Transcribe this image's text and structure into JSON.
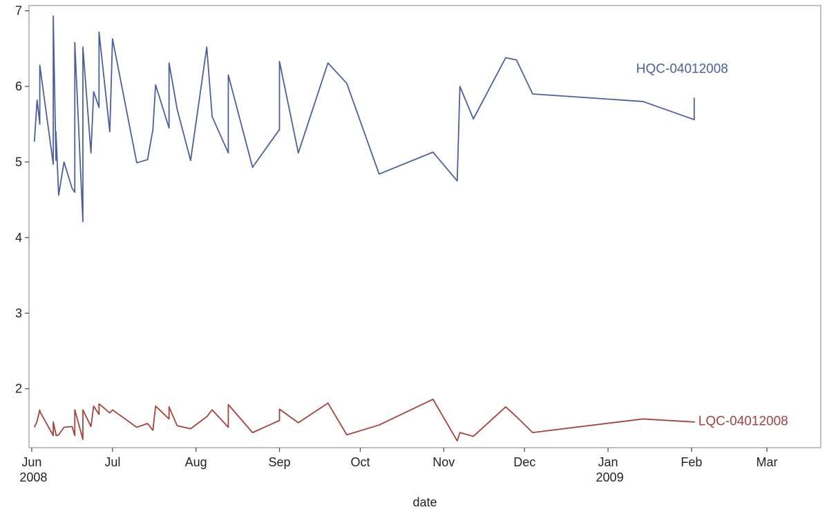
{
  "chart_data": {
    "type": "line",
    "x_label": "date",
    "x": [
      "2008-06-02",
      "2008-06-03",
      "2008-06-04",
      "2008-06-04",
      "2008-06-09",
      "2008-06-09",
      "2008-06-10",
      "2008-06-10",
      "2008-06-11",
      "2008-06-13",
      "2008-06-16",
      "2008-06-17",
      "2008-06-17",
      "2008-06-20",
      "2008-06-20",
      "2008-06-23",
      "2008-06-24",
      "2008-06-26",
      "2008-06-26",
      "2008-06-30",
      "2008-07-01",
      "2008-07-10",
      "2008-07-14",
      "2008-07-16",
      "2008-07-17",
      "2008-07-22",
      "2008-07-22",
      "2008-07-25",
      "2008-07-30",
      "2008-08-05",
      "2008-08-07",
      "2008-08-13",
      "2008-08-13",
      "2008-08-22",
      "2008-09-01",
      "2008-09-01",
      "2008-09-08",
      "2008-09-19",
      "2008-09-26",
      "2008-10-08",
      "2008-10-28",
      "2008-11-06",
      "2008-11-07",
      "2008-11-12",
      "2008-11-24",
      "2008-11-28",
      "2008-12-04",
      "2009-01-14",
      "2009-02-02",
      "2009-02-02"
    ],
    "series": [
      {
        "name": "HQC-04012008",
        "color": "#4c5f9b",
        "values": [
          5.27,
          5.82,
          5.5,
          6.28,
          4.97,
          6.93,
          5.02,
          5.4,
          4.56,
          5.0,
          4.65,
          4.6,
          6.58,
          4.21,
          6.52,
          5.12,
          5.93,
          5.72,
          6.72,
          5.4,
          6.63,
          4.99,
          5.03,
          5.43,
          6.02,
          5.45,
          6.31,
          5.7,
          5.02,
          6.52,
          5.6,
          5.12,
          6.15,
          4.93,
          5.43,
          6.33,
          5.12,
          6.31,
          6.04,
          4.84,
          5.13,
          4.75,
          6.0,
          5.57,
          6.38,
          6.35,
          5.9,
          5.8,
          5.56,
          5.85
        ]
      },
      {
        "name": "LQC-04012008",
        "color": "#a6413b",
        "values": [
          1.49,
          1.57,
          1.72,
          1.7,
          1.38,
          1.56,
          1.4,
          1.38,
          1.39,
          1.49,
          1.5,
          1.38,
          1.72,
          1.33,
          1.72,
          1.5,
          1.77,
          1.66,
          1.8,
          1.68,
          1.72,
          1.49,
          1.54,
          1.45,
          1.77,
          1.6,
          1.76,
          1.51,
          1.47,
          1.63,
          1.72,
          1.49,
          1.79,
          1.42,
          1.58,
          1.73,
          1.55,
          1.81,
          1.39,
          1.52,
          1.86,
          1.31,
          1.42,
          1.37,
          1.76,
          1.63,
          1.42,
          1.6,
          1.56,
          1.57
        ]
      }
    ],
    "xlim": [
      "2008-05-31",
      "2009-03-21"
    ],
    "xticks": [
      {
        "value": "2008-06-01",
        "label": "Jun 2008"
      },
      {
        "value": "2008-07-01",
        "label": "Jul"
      },
      {
        "value": "2008-08-01",
        "label": "Aug"
      },
      {
        "value": "2008-09-01",
        "label": "Sep"
      },
      {
        "value": "2008-10-01",
        "label": "Oct"
      },
      {
        "value": "2008-11-01",
        "label": "Nov"
      },
      {
        "value": "2008-12-01",
        "label": "Dec"
      },
      {
        "value": "2009-01-01",
        "label": "Jan 2009"
      },
      {
        "value": "2009-02-01",
        "label": "Feb"
      },
      {
        "value": "2009-03-01",
        "label": "Mar"
      }
    ],
    "ylim": [
      1.22,
      7.07
    ],
    "yticks": [
      2,
      3,
      4,
      5,
      6,
      7
    ],
    "grid": false
  }
}
